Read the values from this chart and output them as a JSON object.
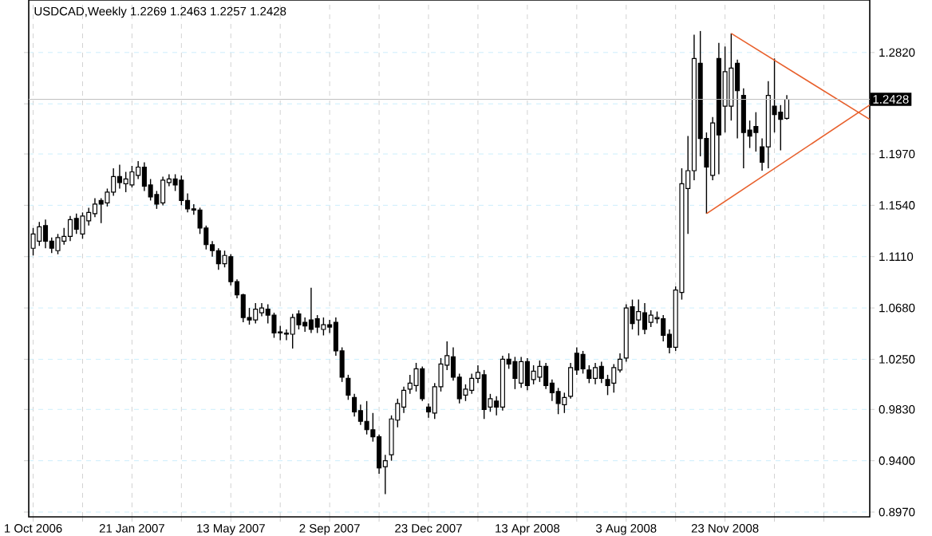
{
  "chart_data": {
    "type": "candlestick",
    "title": "USDCAD,Weekly  1.2269 1.2463 1.2257 1.2428",
    "x": [
      "2006-10-01",
      "2006-10-08",
      "2006-10-15",
      "2006-10-22",
      "2006-10-29",
      "2006-11-05",
      "2006-11-12",
      "2006-11-19",
      "2006-11-26",
      "2006-12-03",
      "2006-12-10",
      "2006-12-17",
      "2006-12-24",
      "2006-12-31",
      "2007-01-07",
      "2007-01-14",
      "2007-01-21",
      "2007-01-28",
      "2007-02-04",
      "2007-02-11",
      "2007-02-18",
      "2007-02-25",
      "2007-03-04",
      "2007-03-11",
      "2007-03-18",
      "2007-03-25",
      "2007-04-01",
      "2007-04-08",
      "2007-04-15",
      "2007-04-22",
      "2007-04-29",
      "2007-05-06",
      "2007-05-13",
      "2007-05-20",
      "2007-05-27",
      "2007-06-03",
      "2007-06-10",
      "2007-06-17",
      "2007-06-24",
      "2007-07-01",
      "2007-07-08",
      "2007-07-15",
      "2007-07-22",
      "2007-07-29",
      "2007-08-05",
      "2007-08-12",
      "2007-08-19",
      "2007-08-26",
      "2007-09-02",
      "2007-09-09",
      "2007-09-16",
      "2007-09-23",
      "2007-09-30",
      "2007-10-07",
      "2007-10-14",
      "2007-10-21",
      "2007-10-28",
      "2007-11-04",
      "2007-11-11",
      "2007-11-18",
      "2007-11-25",
      "2007-12-02",
      "2007-12-09",
      "2007-12-16",
      "2007-12-23",
      "2007-12-30",
      "2008-01-06",
      "2008-01-13",
      "2008-01-20",
      "2008-01-27",
      "2008-02-03",
      "2008-02-10",
      "2008-02-17",
      "2008-02-24",
      "2008-03-02",
      "2008-03-09",
      "2008-03-16",
      "2008-03-23",
      "2008-03-30",
      "2008-04-06",
      "2008-04-13",
      "2008-04-20",
      "2008-04-27",
      "2008-05-04",
      "2008-05-11",
      "2008-05-18",
      "2008-05-25",
      "2008-06-01",
      "2008-06-08",
      "2008-06-15",
      "2008-06-22",
      "2008-06-29",
      "2008-07-06",
      "2008-07-13",
      "2008-07-20",
      "2008-07-27",
      "2008-08-03",
      "2008-08-10",
      "2008-08-17",
      "2008-08-24",
      "2008-08-31",
      "2008-09-07",
      "2008-09-14",
      "2008-09-21",
      "2008-09-28",
      "2008-10-05",
      "2008-10-12",
      "2008-10-19",
      "2008-10-26",
      "2008-11-02",
      "2008-11-09",
      "2008-11-16",
      "2008-11-23",
      "2008-11-30",
      "2008-12-07",
      "2008-12-14",
      "2008-12-21",
      "2008-12-28",
      "2009-01-04",
      "2009-01-11",
      "2009-01-18",
      "2009-01-25",
      "2009-02-01"
    ],
    "ohlc": [
      [
        1.118,
        1.135,
        1.112,
        1.13
      ],
      [
        1.124,
        1.14,
        1.12,
        1.136
      ],
      [
        1.137,
        1.142,
        1.118,
        1.124
      ],
      [
        1.124,
        1.127,
        1.114,
        1.118
      ],
      [
        1.116,
        1.13,
        1.113,
        1.127
      ],
      [
        1.124,
        1.135,
        1.121,
        1.128
      ],
      [
        1.128,
        1.145,
        1.124,
        1.142
      ],
      [
        1.143,
        1.147,
        1.13,
        1.134
      ],
      [
        1.13,
        1.148,
        1.126,
        1.145
      ],
      [
        1.141,
        1.152,
        1.137,
        1.148
      ],
      [
        1.147,
        1.16,
        1.144,
        1.155
      ],
      [
        1.158,
        1.16,
        1.139,
        1.155
      ],
      [
        1.156,
        1.168,
        1.153,
        1.165
      ],
      [
        1.165,
        1.185,
        1.162,
        1.178
      ],
      [
        1.178,
        1.188,
        1.168,
        1.173
      ],
      [
        1.172,
        1.182,
        1.165,
        1.176
      ],
      [
        1.171,
        1.187,
        1.169,
        1.182
      ],
      [
        1.179,
        1.191,
        1.176,
        1.186
      ],
      [
        1.186,
        1.19,
        1.166,
        1.17
      ],
      [
        1.171,
        1.176,
        1.158,
        1.161
      ],
      [
        1.163,
        1.166,
        1.151,
        1.155
      ],
      [
        1.156,
        1.178,
        1.154,
        1.175
      ],
      [
        1.173,
        1.18,
        1.17,
        1.176
      ],
      [
        1.176,
        1.18,
        1.166,
        1.171
      ],
      [
        1.175,
        1.179,
        1.154,
        1.158
      ],
      [
        1.158,
        1.164,
        1.148,
        1.151
      ],
      [
        1.151,
        1.155,
        1.146,
        1.15
      ],
      [
        1.15,
        1.152,
        1.13,
        1.135
      ],
      [
        1.135,
        1.137,
        1.117,
        1.121
      ],
      [
        1.121,
        1.124,
        1.111,
        1.116
      ],
      [
        1.116,
        1.118,
        1.1,
        1.105
      ],
      [
        1.105,
        1.116,
        1.102,
        1.112
      ],
      [
        1.111,
        1.113,
        1.087,
        1.09
      ],
      [
        1.09,
        1.092,
        1.076,
        1.079
      ],
      [
        1.079,
        1.08,
        1.056,
        1.06
      ],
      [
        1.06,
        1.068,
        1.054,
        1.058
      ],
      [
        1.058,
        1.072,
        1.055,
        1.067
      ],
      [
        1.064,
        1.072,
        1.061,
        1.068
      ],
      [
        1.067,
        1.071,
        1.055,
        1.062
      ],
      [
        1.062,
        1.064,
        1.043,
        1.047
      ],
      [
        1.048,
        1.053,
        1.041,
        1.047
      ],
      [
        1.047,
        1.05,
        1.041,
        1.046
      ],
      [
        1.046,
        1.063,
        1.034,
        1.06
      ],
      [
        1.063,
        1.066,
        1.05,
        1.054
      ],
      [
        1.056,
        1.06,
        1.048,
        1.053
      ],
      [
        1.058,
        1.085,
        1.047,
        1.05
      ],
      [
        1.059,
        1.062,
        1.047,
        1.052
      ],
      [
        1.05,
        1.06,
        1.045,
        1.054
      ],
      [
        1.054,
        1.058,
        1.047,
        1.052
      ],
      [
        1.056,
        1.06,
        1.028,
        1.032
      ],
      [
        1.032,
        1.035,
        1.006,
        1.01
      ],
      [
        1.009,
        1.012,
        0.991,
        0.995
      ],
      [
        0.993,
        0.996,
        0.977,
        0.981
      ],
      [
        0.982,
        0.987,
        0.97,
        0.973
      ],
      [
        0.973,
        0.99,
        0.962,
        0.966
      ],
      [
        0.966,
        0.98,
        0.956,
        0.96
      ],
      [
        0.96,
        0.962,
        0.929,
        0.934
      ],
      [
        0.935,
        0.945,
        0.912,
        0.94
      ],
      [
        0.945,
        0.978,
        0.94,
        0.975
      ],
      [
        0.974,
        0.992,
        0.968,
        0.988
      ],
      [
        0.985,
        1.002,
        0.98,
        0.999
      ],
      [
        1.0,
        1.012,
        0.996,
        1.005
      ],
      [
        1.003,
        1.022,
        0.998,
        1.017
      ],
      [
        1.017,
        1.019,
        0.99,
        0.992
      ],
      [
        0.985,
        0.988,
        0.976,
        0.981
      ],
      [
        0.98,
        1.005,
        0.975,
        1.002
      ],
      [
        1.002,
        1.026,
        0.998,
        1.021
      ],
      [
        1.02,
        1.04,
        1.016,
        1.028
      ],
      [
        1.027,
        1.035,
        1.007,
        1.01
      ],
      [
        1.01,
        1.013,
        0.988,
        0.992
      ],
      [
        0.995,
        1.004,
        0.99,
        1.0
      ],
      [
        0.999,
        1.013,
        0.996,
        1.009
      ],
      [
        1.009,
        1.02,
        1.005,
        1.014
      ],
      [
        1.012,
        1.016,
        0.975,
        0.983
      ],
      [
        0.985,
        0.996,
        0.981,
        0.992
      ],
      [
        0.99,
        0.994,
        0.978,
        0.985
      ],
      [
        0.985,
        1.028,
        0.982,
        1.025
      ],
      [
        1.025,
        1.03,
        1.017,
        1.021
      ],
      [
        1.023,
        1.027,
        1.0,
        1.009
      ],
      [
        1.005,
        1.027,
        1.001,
        1.023
      ],
      [
        1.023,
        1.026,
        0.999,
        1.003
      ],
      [
        1.008,
        1.02,
        1.004,
        1.015
      ],
      [
        1.01,
        1.024,
        1.006,
        1.019
      ],
      [
        1.019,
        1.022,
        1.0,
        1.003
      ],
      [
        1.005,
        1.008,
        0.99,
        0.997
      ],
      [
        0.998,
        1.001,
        0.979,
        0.988
      ],
      [
        0.987,
        0.997,
        0.98,
        0.993
      ],
      [
        0.994,
        1.022,
        0.992,
        1.018
      ],
      [
        1.03,
        1.035,
        1.012,
        1.016
      ],
      [
        1.029,
        1.032,
        1.013,
        1.017
      ],
      [
        1.016,
        1.02,
        1.005,
        1.009
      ],
      [
        1.009,
        1.022,
        1.004,
        1.018
      ],
      [
        1.019,
        1.023,
        1.005,
        1.009
      ],
      [
        1.008,
        1.012,
        0.995,
        1.003
      ],
      [
        1.005,
        1.021,
        0.997,
        1.018
      ],
      [
        1.016,
        1.03,
        1.014,
        1.025
      ],
      [
        1.026,
        1.071,
        1.023,
        1.068
      ],
      [
        1.069,
        1.075,
        1.05,
        1.055
      ],
      [
        1.058,
        1.075,
        1.045,
        1.065
      ],
      [
        1.064,
        1.072,
        1.046,
        1.05
      ],
      [
        1.056,
        1.066,
        1.052,
        1.062
      ],
      [
        1.059,
        1.065,
        1.055,
        1.06
      ],
      [
        1.059,
        1.062,
        1.04,
        1.045
      ],
      [
        1.046,
        1.05,
        1.03,
        1.035
      ],
      [
        1.035,
        1.086,
        1.032,
        1.083
      ],
      [
        1.081,
        1.185,
        1.075,
        1.172
      ],
      [
        1.168,
        1.212,
        1.13,
        1.183
      ],
      [
        1.183,
        1.297,
        1.175,
        1.277
      ],
      [
        1.273,
        1.3,
        1.195,
        1.21
      ],
      [
        1.21,
        1.215,
        1.147,
        1.186
      ],
      [
        1.179,
        1.228,
        1.175,
        1.223
      ],
      [
        1.277,
        1.29,
        1.18,
        1.213
      ],
      [
        1.237,
        1.287,
        1.215,
        1.266
      ],
      [
        1.237,
        1.298,
        1.225,
        1.269
      ],
      [
        1.273,
        1.276,
        1.21,
        1.25
      ],
      [
        1.246,
        1.252,
        1.185,
        1.215
      ],
      [
        1.217,
        1.225,
        1.202,
        1.212
      ],
      [
        1.22,
        1.232,
        1.199,
        1.215
      ],
      [
        1.203,
        1.21,
        1.183,
        1.19
      ],
      [
        1.203,
        1.258,
        1.185,
        1.246
      ],
      [
        1.237,
        1.277,
        1.215,
        1.23
      ],
      [
        1.232,
        1.238,
        1.2,
        1.226
      ],
      [
        1.2269,
        1.2463,
        1.2257,
        1.2428
      ]
    ],
    "series": [
      {
        "type": "line",
        "color": "#e8602c",
        "x": [
          "2008-11-30",
          "2009-05-06"
        ],
        "values": [
          1.298,
          1.226
        ]
      },
      {
        "type": "line",
        "color": "#e8602c",
        "x": [
          "2008-11-02",
          "2009-05-06"
        ],
        "values": [
          1.147,
          1.238
        ]
      }
    ],
    "xlim": [
      "2006-09-26",
      "2009-05-06"
    ],
    "xticks": [
      {
        "value": "2006-10-01",
        "label": "1 Oct 2006"
      },
      {
        "value": "2006-11-26",
        "label": null
      },
      {
        "value": "2007-01-21",
        "label": "21 Jan 2007"
      },
      {
        "value": "2007-03-18",
        "label": null
      },
      {
        "value": "2007-05-13",
        "label": "13 May 2007"
      },
      {
        "value": "2007-07-08",
        "label": null
      },
      {
        "value": "2007-09-02",
        "label": "2 Sep 2007"
      },
      {
        "value": "2007-10-28",
        "label": null
      },
      {
        "value": "2007-12-23",
        "label": "23 Dec 2007"
      },
      {
        "value": "2008-02-17",
        "label": null
      },
      {
        "value": "2008-04-13",
        "label": "13 Apr 2008"
      },
      {
        "value": "2008-06-08",
        "label": null
      },
      {
        "value": "2008-08-03",
        "label": "3 Aug 2008"
      },
      {
        "value": "2008-09-28",
        "label": null
      },
      {
        "value": "2008-11-23",
        "label": "23 Nov 2008"
      },
      {
        "value": "2009-01-18",
        "label": null
      },
      {
        "value": "2009-03-15",
        "label": null
      }
    ],
    "ylim": [
      0.893,
      1.326
    ],
    "yticks": [
      {
        "value": 0.897,
        "label": "0.8970"
      },
      {
        "value": 0.94,
        "label": "0.9400"
      },
      {
        "value": 0.983,
        "label": "0.9830"
      },
      {
        "value": 1.025,
        "label": "1.0250"
      },
      {
        "value": 1.068,
        "label": "1.0680"
      },
      {
        "value": 1.111,
        "label": "1.1110"
      },
      {
        "value": 1.154,
        "label": "1.1540"
      },
      {
        "value": 1.197,
        "label": "1.1970"
      },
      {
        "value": 1.239,
        "label": null
      },
      {
        "value": 1.282,
        "label": "1.2820"
      }
    ],
    "ref_lines": [
      {
        "axis": "y",
        "value": 1.2428,
        "label": "1.2428",
        "color": "#c0c0c0"
      }
    ],
    "grid": true
  }
}
